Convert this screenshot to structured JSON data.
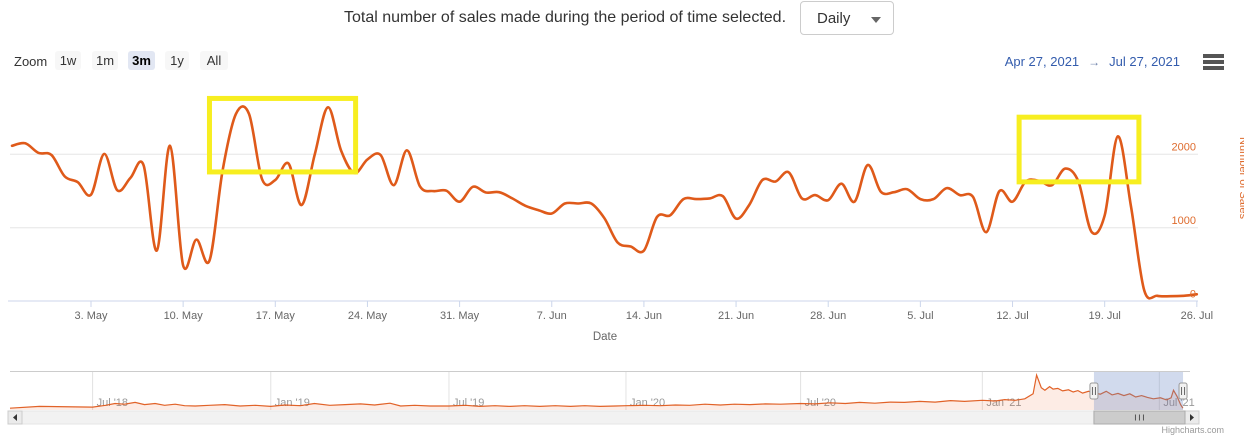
{
  "header": {
    "title": "Total number of sales made during the period of time selected.",
    "interval_select": {
      "value": "Daily"
    }
  },
  "range_selector": {
    "zoom_label": "Zoom",
    "buttons": [
      {
        "label": "1w",
        "selected": false
      },
      {
        "label": "1m",
        "selected": false
      },
      {
        "label": "3m",
        "selected": true
      },
      {
        "label": "1y",
        "selected": false
      },
      {
        "label": "All",
        "selected": false
      }
    ],
    "from_date": "Apr 27, 2021",
    "arrow": "→",
    "to_date": "Jul 27, 2021"
  },
  "chart_data": {
    "type": "line",
    "title": "Total number of sales made during the period of time selected.",
    "xlabel": "Date",
    "ylabel": "Number of Sales",
    "x_tick_labels": [
      "3. May",
      "10. May",
      "17. May",
      "24. May",
      "31. May",
      "7. Jun",
      "14. Jun",
      "21. Jun",
      "28. Jun",
      "5. Jul",
      "12. Jul",
      "19. Jul",
      "26. Jul"
    ],
    "x_tick_days": [
      6,
      13,
      20,
      27,
      34,
      41,
      48,
      55,
      62,
      69,
      76,
      83,
      90
    ],
    "y_ticks": [
      0,
      1000,
      2000
    ],
    "ylim": [
      0,
      2950
    ],
    "x_range_days": [
      0,
      91
    ],
    "grid": true,
    "legend_position": "none",
    "series": [
      {
        "name": "Number of Sales",
        "color": "#df5a1a",
        "start": "Apr 27, 2021",
        "interval": "1 day",
        "values": [
          2115,
          2150,
          2020,
          1990,
          1700,
          1620,
          1450,
          2005,
          1510,
          1680,
          1850,
          690,
          2115,
          490,
          840,
          555,
          1780,
          2545,
          2550,
          1660,
          1650,
          1875,
          1310,
          2000,
          2640,
          2050,
          1745,
          1930,
          1990,
          1580,
          2055,
          1560,
          1500,
          1505,
          1355,
          1558,
          1480,
          1485,
          1400,
          1300,
          1240,
          1195,
          1330,
          1330,
          1330,
          1130,
          800,
          745,
          690,
          1150,
          1170,
          1390,
          1390,
          1400,
          1430,
          1125,
          1310,
          1650,
          1630,
          1755,
          1400,
          1445,
          1375,
          1600,
          1355,
          1855,
          1490,
          1485,
          1525,
          1390,
          1390,
          1540,
          1445,
          1420,
          940,
          1500,
          1355,
          1630,
          1640,
          1580,
          1805,
          1630,
          945,
          1170,
          2245,
          1290,
          150,
          75,
          70,
          75,
          95
        ]
      }
    ],
    "annotations": [
      {
        "type": "rect",
        "color": "#f7ee20",
        "day_start": 15.0,
        "day_end": 26.1,
        "value_low": 1760,
        "value_high": 2760
      },
      {
        "type": "rect",
        "color": "#f7ee20",
        "day_start": 76.5,
        "day_end": 85.6,
        "value_low": 1625,
        "value_high": 2505
      }
    ]
  },
  "navigator": {
    "axis_labels": [
      {
        "label": "Jul '18",
        "f": 0.07
      },
      {
        "label": "Jan '19",
        "f": 0.221
      },
      {
        "label": "Jul '19",
        "f": 0.372
      },
      {
        "label": "Jan '20",
        "f": 0.522
      },
      {
        "label": "Jul '20",
        "f": 0.67
      },
      {
        "label": "Jan '21",
        "f": 0.824
      },
      {
        "label": "Jul '21",
        "f": 0.974
      }
    ],
    "selected_range_f": [
      0.9186,
      0.9941
    ],
    "mask_color": "rgba(102,133,194,0.3)",
    "series_points": [
      [
        0.0,
        0.05
      ],
      [
        0.025,
        0.1
      ],
      [
        0.07,
        0.08
      ],
      [
        0.081,
        0.13
      ],
      [
        0.089,
        0.18
      ],
      [
        0.097,
        0.16
      ],
      [
        0.106,
        0.21
      ],
      [
        0.114,
        0.15
      ],
      [
        0.123,
        0.18
      ],
      [
        0.131,
        0.13
      ],
      [
        0.14,
        0.16
      ],
      [
        0.148,
        0.12
      ],
      [
        0.157,
        0.11
      ],
      [
        0.169,
        0.13
      ],
      [
        0.182,
        0.15
      ],
      [
        0.195,
        0.11
      ],
      [
        0.208,
        0.13
      ],
      [
        0.221,
        0.1
      ],
      [
        0.233,
        0.14
      ],
      [
        0.246,
        0.12
      ],
      [
        0.258,
        0.18
      ],
      [
        0.271,
        0.13
      ],
      [
        0.284,
        0.15
      ],
      [
        0.297,
        0.17
      ],
      [
        0.309,
        0.14
      ],
      [
        0.322,
        0.19
      ],
      [
        0.331,
        0.11
      ],
      [
        0.343,
        0.13
      ],
      [
        0.356,
        0.11
      ],
      [
        0.372,
        0.11
      ],
      [
        0.386,
        0.13
      ],
      [
        0.398,
        0.1
      ],
      [
        0.411,
        0.12
      ],
      [
        0.424,
        0.1
      ],
      [
        0.436,
        0.12
      ],
      [
        0.449,
        0.1
      ],
      [
        0.462,
        0.12
      ],
      [
        0.475,
        0.1
      ],
      [
        0.487,
        0.12
      ],
      [
        0.5,
        0.1
      ],
      [
        0.513,
        0.11
      ],
      [
        0.522,
        0.12
      ],
      [
        0.538,
        0.13
      ],
      [
        0.551,
        0.12
      ],
      [
        0.564,
        0.14
      ],
      [
        0.576,
        0.13
      ],
      [
        0.589,
        0.16
      ],
      [
        0.602,
        0.14
      ],
      [
        0.614,
        0.16
      ],
      [
        0.627,
        0.15
      ],
      [
        0.64,
        0.17
      ],
      [
        0.653,
        0.16
      ],
      [
        0.67,
        0.18
      ],
      [
        0.682,
        0.17
      ],
      [
        0.695,
        0.2
      ],
      [
        0.708,
        0.18
      ],
      [
        0.72,
        0.21
      ],
      [
        0.733,
        0.19
      ],
      [
        0.746,
        0.22
      ],
      [
        0.758,
        0.21
      ],
      [
        0.771,
        0.24
      ],
      [
        0.784,
        0.22
      ],
      [
        0.797,
        0.26
      ],
      [
        0.809,
        0.24
      ],
      [
        0.824,
        0.27
      ],
      [
        0.835,
        0.25
      ],
      [
        0.843,
        0.29
      ],
      [
        0.852,
        0.27
      ],
      [
        0.86,
        0.31
      ],
      [
        0.867,
        0.45
      ],
      [
        0.87,
        0.97
      ],
      [
        0.874,
        0.62
      ],
      [
        0.877,
        0.55
      ],
      [
        0.881,
        0.65
      ],
      [
        0.884,
        0.58
      ],
      [
        0.888,
        0.6
      ],
      [
        0.892,
        0.53
      ],
      [
        0.897,
        0.56
      ],
      [
        0.901,
        0.5
      ],
      [
        0.905,
        0.54
      ],
      [
        0.909,
        0.47
      ],
      [
        0.914,
        0.52
      ],
      [
        0.919,
        0.48
      ],
      [
        0.924,
        0.44
      ],
      [
        0.929,
        0.52
      ],
      [
        0.934,
        0.42
      ],
      [
        0.939,
        0.46
      ],
      [
        0.944,
        0.4
      ],
      [
        0.949,
        0.45
      ],
      [
        0.954,
        0.36
      ],
      [
        0.959,
        0.4
      ],
      [
        0.964,
        0.35
      ],
      [
        0.969,
        0.31
      ],
      [
        0.975,
        0.34
      ],
      [
        0.98,
        0.28
      ],
      [
        0.984,
        0.34
      ],
      [
        0.986,
        0.55
      ],
      [
        0.989,
        0.38
      ],
      [
        0.992,
        0.15
      ],
      [
        0.994,
        0.05
      ]
    ]
  },
  "credits": "Highcharts.com"
}
